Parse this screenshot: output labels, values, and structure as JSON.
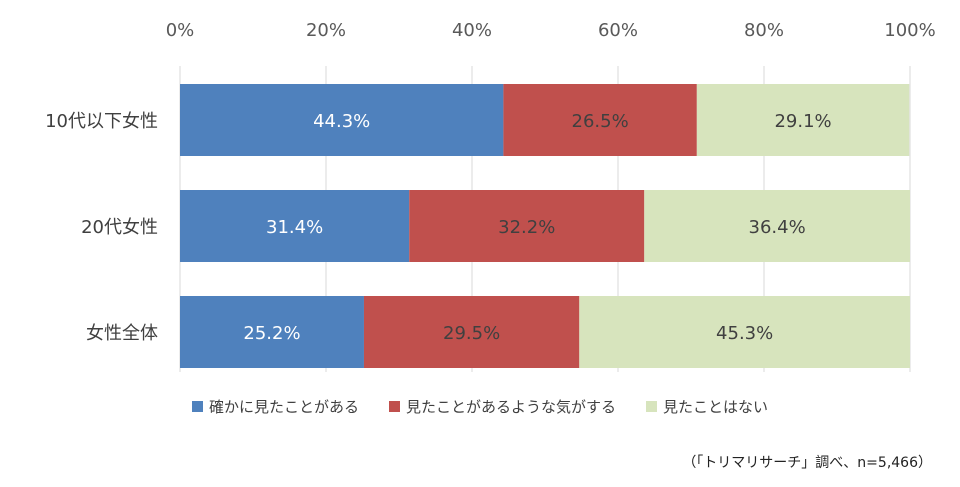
{
  "chart_data": {
    "type": "bar",
    "orientation": "horizontal",
    "stacked": "percent",
    "categories": [
      "10代以下女性",
      "20代女性",
      "女性全体"
    ],
    "series": [
      {
        "name": "確かに見たことがある",
        "values": [
          44.3,
          31.4,
          25.2
        ],
        "color": "#4f81bd",
        "label_color": "#ffffff"
      },
      {
        "name": "見たことがあるような気がする",
        "values": [
          26.5,
          32.2,
          29.5
        ],
        "color": "#c0504d",
        "label_color": "#404040"
      },
      {
        "name": "見たことはない",
        "values": [
          29.1,
          36.4,
          45.3
        ],
        "color": "#d7e4bd",
        "label_color": "#404040"
      }
    ],
    "data_labels": [
      [
        "44.3%",
        "31.4%",
        "25.2%"
      ],
      [
        "26.5%",
        "32.2%",
        "29.5%"
      ],
      [
        "29.1%",
        "36.4%",
        "45.3%"
      ]
    ],
    "x_ticks": [
      "0%",
      "20%",
      "40%",
      "60%",
      "80%",
      "100%"
    ],
    "xlim": [
      0,
      100
    ],
    "grid": true,
    "legend_position": "bottom",
    "gridline_color": "#d9d9d9"
  },
  "note": "（「トリマリサーチ」調べ、n=5,466）"
}
